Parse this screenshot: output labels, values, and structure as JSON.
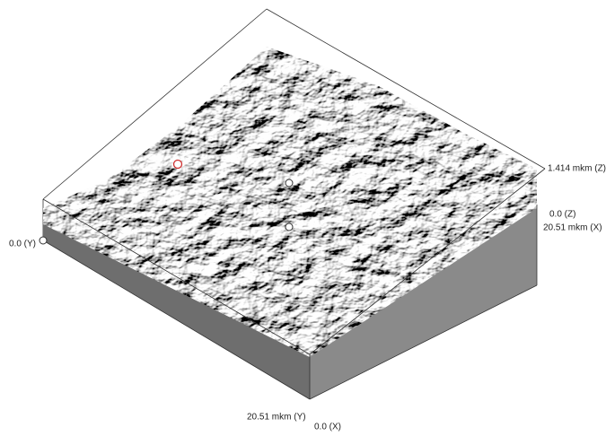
{
  "labels": {
    "z_max": "1.414 mkm (Z)",
    "z_min": "0.0 (Z)",
    "x_max": "20.51 mkm (X)",
    "y_min": "0.0 (Y)",
    "y_max": "20.51 mkm (Y)",
    "x_min": "0.0 (X)"
  }
}
